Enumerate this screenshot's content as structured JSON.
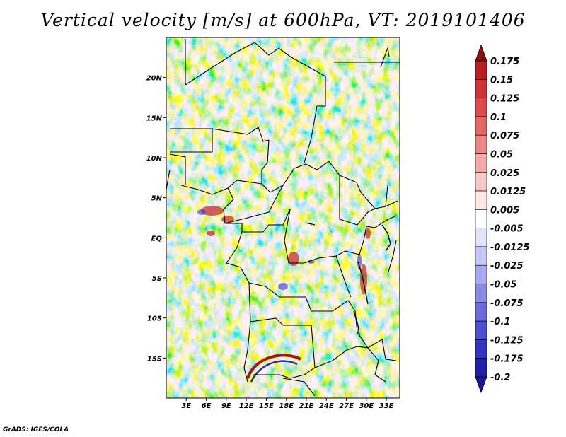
{
  "title": "Vertical velocity [m/s] at 600hPa, VT: 2019101406",
  "credit": "GrADS: IGES/COLA",
  "map": {
    "lon_range": [
      0,
      35
    ],
    "lat_range": [
      -20,
      25
    ],
    "lat_labels": [
      {
        "lat": 20,
        "label": "20N"
      },
      {
        "lat": 15,
        "label": "15N"
      },
      {
        "lat": 10,
        "label": "10N"
      },
      {
        "lat": 5,
        "label": "5N"
      },
      {
        "lat": 0,
        "label": "EQ"
      },
      {
        "lat": -5,
        "label": "5S"
      },
      {
        "lat": -10,
        "label": "10S"
      },
      {
        "lat": -15,
        "label": "15S"
      }
    ],
    "lon_labels": [
      {
        "lon": 3,
        "label": "3E"
      },
      {
        "lon": 6,
        "label": "6E"
      },
      {
        "lon": 9,
        "label": "9E"
      },
      {
        "lon": 12,
        "label": "12E"
      },
      {
        "lon": 15,
        "label": "15E"
      },
      {
        "lon": 18,
        "label": "18E"
      },
      {
        "lon": 21,
        "label": "21E"
      },
      {
        "lon": 24,
        "label": "24E"
      },
      {
        "lon": 27,
        "label": "27E"
      },
      {
        "lon": 30,
        "label": "30E"
      },
      {
        "lon": 33,
        "label": "33E"
      }
    ]
  },
  "colorbar": {
    "levels": [
      {
        "label": "0.175",
        "color": "#a01818"
      },
      {
        "label": "0.15",
        "color": "#b82020"
      },
      {
        "label": "0.125",
        "color": "#cc3232"
      },
      {
        "label": "0.1",
        "color": "#dc4a4a"
      },
      {
        "label": "0.075",
        "color": "#e46666"
      },
      {
        "label": "0.05",
        "color": "#ec8686"
      },
      {
        "label": "0.025",
        "color": "#f4a8a8"
      },
      {
        "label": "0.0125",
        "color": "#f8c8c8"
      },
      {
        "label": "0.005",
        "color": "#fce6e6"
      },
      {
        "label": "-0.005",
        "color": "#ffffff"
      },
      {
        "label": "-0.0125",
        "color": "#e2e2fa"
      },
      {
        "label": "-0.025",
        "color": "#c6c6f4"
      },
      {
        "label": "-0.05",
        "color": "#a8a8ee"
      },
      {
        "label": "-0.075",
        "color": "#8a8ae6"
      },
      {
        "label": "-0.1",
        "color": "#6c6cdc"
      },
      {
        "label": "-0.125",
        "color": "#4e4ed2"
      },
      {
        "label": "-0.175",
        "color": "#3434c4"
      },
      {
        "label": "-0.2",
        "color": "#2020aa"
      }
    ],
    "top_tip_color": "#8c1010",
    "bottom_tip_color": "#181896"
  }
}
